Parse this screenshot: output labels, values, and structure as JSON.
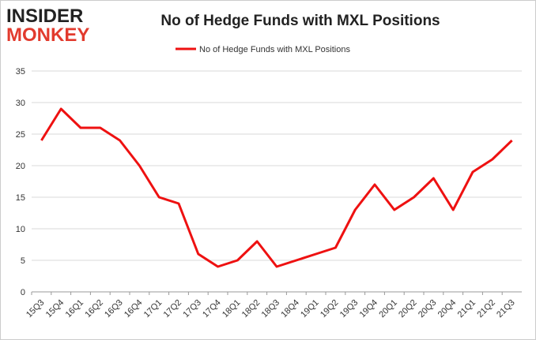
{
  "logo": {
    "line1": "INSIDER",
    "line2": "MONKEY"
  },
  "chart_data": {
    "type": "line",
    "title": "No of Hedge Funds with MXL Positions",
    "categories": [
      "15Q3",
      "15Q4",
      "16Q1",
      "16Q2",
      "16Q3",
      "16Q4",
      "17Q1",
      "17Q2",
      "17Q3",
      "17Q4",
      "18Q1",
      "18Q2",
      "18Q3",
      "18Q4",
      "19Q1",
      "19Q2",
      "19Q3",
      "19Q4",
      "20Q1",
      "20Q2",
      "20Q3",
      "20Q4",
      "21Q1",
      "21Q2",
      "21Q3"
    ],
    "series": [
      {
        "name": "No of Hedge Funds with MXL Positions",
        "color": "#ee1111",
        "values": [
          24,
          29,
          26,
          26,
          24,
          20,
          15,
          14,
          6,
          4,
          5,
          8,
          4,
          5,
          6,
          7,
          13,
          17,
          13,
          15,
          18,
          13,
          19,
          21,
          24
        ]
      }
    ],
    "ylim": [
      0,
      35
    ],
    "yticks": [
      0,
      5,
      10,
      15,
      20,
      25,
      30,
      35
    ],
    "grid": true,
    "legend": "top"
  }
}
